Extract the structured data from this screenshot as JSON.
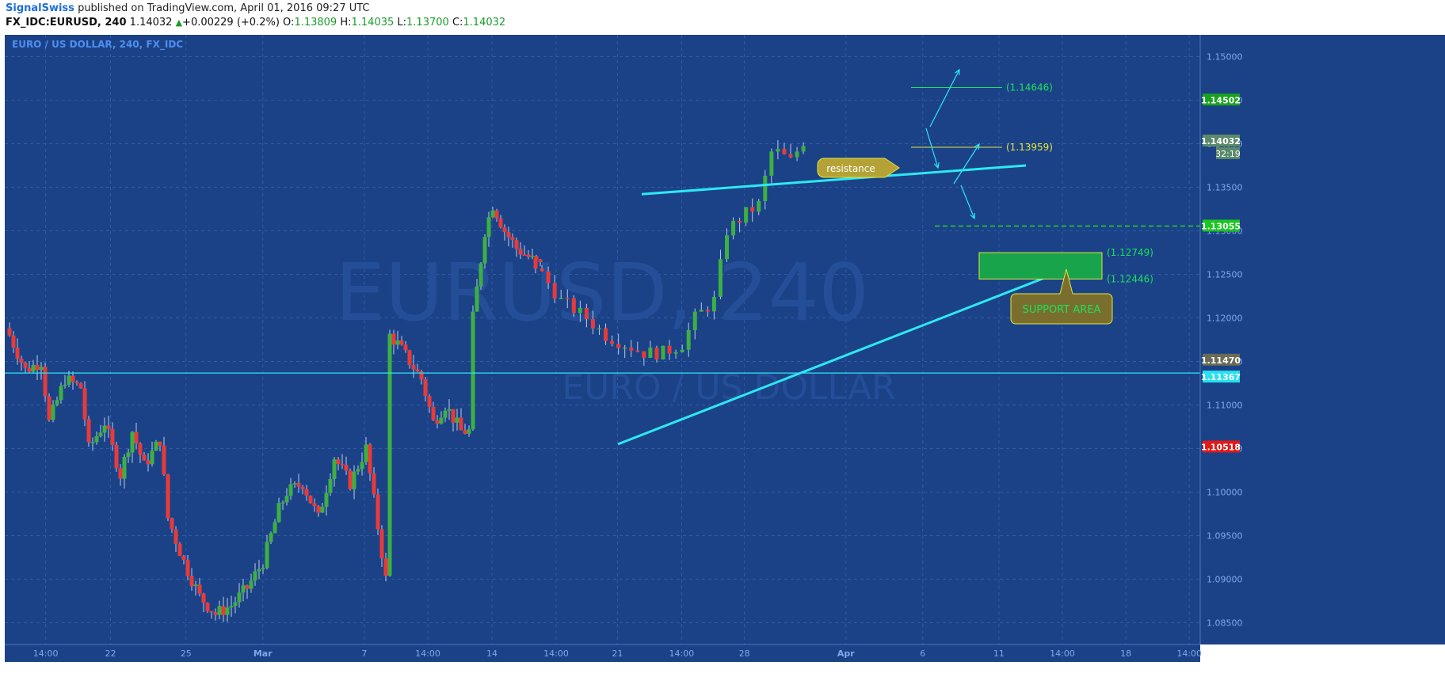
{
  "header": {
    "publisher": "SignalSwiss",
    "published_text": "published on TradingView.com, April 01, 2016 09:27 UTC",
    "symbol": "FX_IDC:EURUSD, 240",
    "last": "1.14032",
    "change": "+0.00229 (+0.2%)",
    "o_label": "O:",
    "o_val": "1.13809",
    "h_label": "H:",
    "h_val": "1.14035",
    "l_label": "L:",
    "l_val": "1.13700",
    "c_label": "C:",
    "c_val": "1.14032"
  },
  "colors": {
    "background": "#1b4287",
    "grid": "#2e5aa5",
    "axis_text": "#7fa8e8",
    "up": "#3cb043",
    "down": "#e83a3a",
    "trendline": "#2ee8f2",
    "annot_green": "#19e35a",
    "annot_yellow": "#e6e63a"
  },
  "chart_data": {
    "type": "candlestick",
    "title": "EURO / US DOLLAR, 240, FX_IDC",
    "watermark_symbol": "EURUSD, 240",
    "watermark_name": "EURO / US DOLLAR",
    "ylim": [
      1.0825,
      1.1525
    ],
    "y_ticks": [
      "1.15000",
      "1.14500",
      "1.14000",
      "1.13500",
      "1.13000",
      "1.12500",
      "1.12000",
      "1.11500",
      "1.11000",
      "1.10500",
      "1.10000",
      "1.09500",
      "1.09000",
      "1.08500"
    ],
    "x_ticks": [
      "14:00",
      "22",
      "25",
      "Mar",
      "7",
      "14:00",
      "14",
      "14:00",
      "21",
      "14:00",
      "28",
      "Apr",
      "6",
      "11",
      "14:00",
      "18",
      "14:00"
    ],
    "bar_count": 134,
    "anchors": [
      [
        0,
        1.118
      ],
      [
        4,
        1.114
      ],
      [
        8,
        1.115
      ],
      [
        10,
        1.108
      ],
      [
        14,
        1.113
      ],
      [
        18,
        1.112
      ],
      [
        20,
        1.105
      ],
      [
        24,
        1.108
      ],
      [
        28,
        1.102
      ],
      [
        31,
        1.107
      ],
      [
        34,
        1.103
      ],
      [
        38,
        1.106
      ],
      [
        40,
        1.097
      ],
      [
        44,
        1.092
      ],
      [
        48,
        1.088
      ],
      [
        52,
        1.086
      ],
      [
        56,
        1.087
      ],
      [
        60,
        1.089
      ],
      [
        64,
        1.092
      ],
      [
        68,
        1.098
      ],
      [
        70,
        1.1
      ],
      [
        74,
        1.101
      ],
      [
        78,
        1.097
      ],
      [
        82,
        1.104
      ],
      [
        86,
        1.101
      ],
      [
        90,
        1.105
      ],
      [
        93,
        1.096
      ],
      [
        95,
        1.09
      ],
      [
        96,
        1.118
      ],
      [
        98,
        1.117
      ],
      [
        101,
        1.115
      ],
      [
        104,
        1.113
      ],
      [
        107,
        1.108
      ],
      [
        110,
        1.11
      ],
      [
        114,
        1.107
      ],
      [
        116,
        1.107
      ],
      [
        117,
        1.12
      ],
      [
        120,
        1.13
      ],
      [
        122,
        1.133
      ],
      [
        125,
        1.13
      ],
      [
        128,
        1.128
      ],
      [
        134,
        1.126
      ]
    ],
    "series2_anchors": [
      [
        0,
        1.126
      ],
      [
        4,
        1.122
      ],
      [
        8,
        1.12
      ],
      [
        11,
        1.118
      ],
      [
        14,
        1.117
      ],
      [
        17,
        1.116
      ],
      [
        20,
        1.116
      ],
      [
        23,
        1.117
      ],
      [
        25,
        1.12
      ],
      [
        28,
        1.122
      ],
      [
        30,
        1.13
      ],
      [
        33,
        1.132
      ],
      [
        35,
        1.133
      ],
      [
        36,
        1.136
      ],
      [
        37,
        1.139
      ],
      [
        38,
        1.139
      ],
      [
        40,
        1.138
      ],
      [
        42,
        1.1403
      ]
    ],
    "current_price": "1.14032",
    "countdown": "32:19",
    "price_tags": [
      {
        "label": "1.14502",
        "value": 1.14502,
        "color": "#1aa31f"
      },
      {
        "label": "1.14032",
        "value": 1.14032,
        "color": "#5a8a6a"
      },
      {
        "label": "1.13055",
        "value": 1.13055,
        "color": "#18c81e"
      },
      {
        "label": "1.11470",
        "value": 1.1147,
        "color": "#6b6b55"
      },
      {
        "label": "1.11367",
        "value": 1.11367,
        "color": "#28e0f0"
      },
      {
        "label": "1.10518",
        "value": 1.10518,
        "color": "#e31818"
      }
    ],
    "levels": [
      {
        "label": "(1.14646)",
        "value": 1.14646,
        "color": "#19e35a"
      },
      {
        "label": "(1.13959)",
        "value": 1.13959,
        "color": "#e6e63a"
      },
      {
        "label": "(1.12749)",
        "value": 1.12749,
        "color": "#19e35a"
      },
      {
        "label": "(1.12446)",
        "value": 1.12446,
        "color": "#19e35a"
      }
    ],
    "horizontal_line": 1.11367,
    "dashed_level": 1.13055,
    "support_zone": [
      1.12446,
      1.12749
    ],
    "trendlines": [
      {
        "from": [
          1.1055
        ],
        "to": [
          1.125
        ]
      },
      {
        "from": [
          1.1342
        ],
        "to": [
          1.1375
        ]
      }
    ],
    "callouts": [
      {
        "text": "resistance"
      },
      {
        "text": "SUPPORT AREA"
      }
    ]
  }
}
